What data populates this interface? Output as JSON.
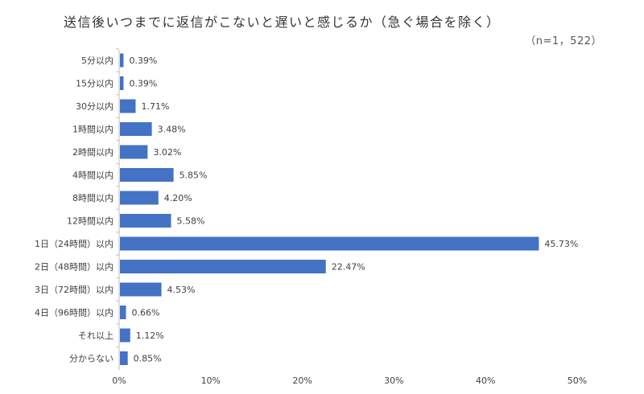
{
  "chart_data": {
    "type": "bar",
    "orientation": "horizontal",
    "title": "送信後いつまでに返信がこないと遅いと感じるか（急ぐ場合を除く）",
    "sample_size": "（n=1，522）",
    "categories": [
      "5分以内",
      "15分以内",
      "30分以内",
      "1時間以内",
      "2時間以内",
      "4時間以内",
      "8時間以内",
      "12時間以内",
      "1日（24時間）以内",
      "2日（48時間）以内",
      "3日（72時間）以内",
      "4日（96時間）以内",
      "それ以上",
      "分からない"
    ],
    "values": [
      0.39,
      0.39,
      1.71,
      3.48,
      3.02,
      5.85,
      4.2,
      5.58,
      45.73,
      22.47,
      4.53,
      0.66,
      1.12,
      0.85
    ],
    "value_labels": [
      "0.39%",
      "0.39%",
      "1.71%",
      "3.48%",
      "3.02%",
      "5.85%",
      "4.20%",
      "5.58%",
      "45.73%",
      "22.47%",
      "4.53%",
      "0.66%",
      "1.12%",
      "0.85%"
    ],
    "x_ticks": [
      0,
      10,
      20,
      30,
      40,
      50
    ],
    "x_tick_labels": [
      "0%",
      "10%",
      "20%",
      "30%",
      "40%",
      "50%"
    ],
    "xlim": [
      0,
      50
    ],
    "bar_color": "#4472C4",
    "grid": false
  }
}
